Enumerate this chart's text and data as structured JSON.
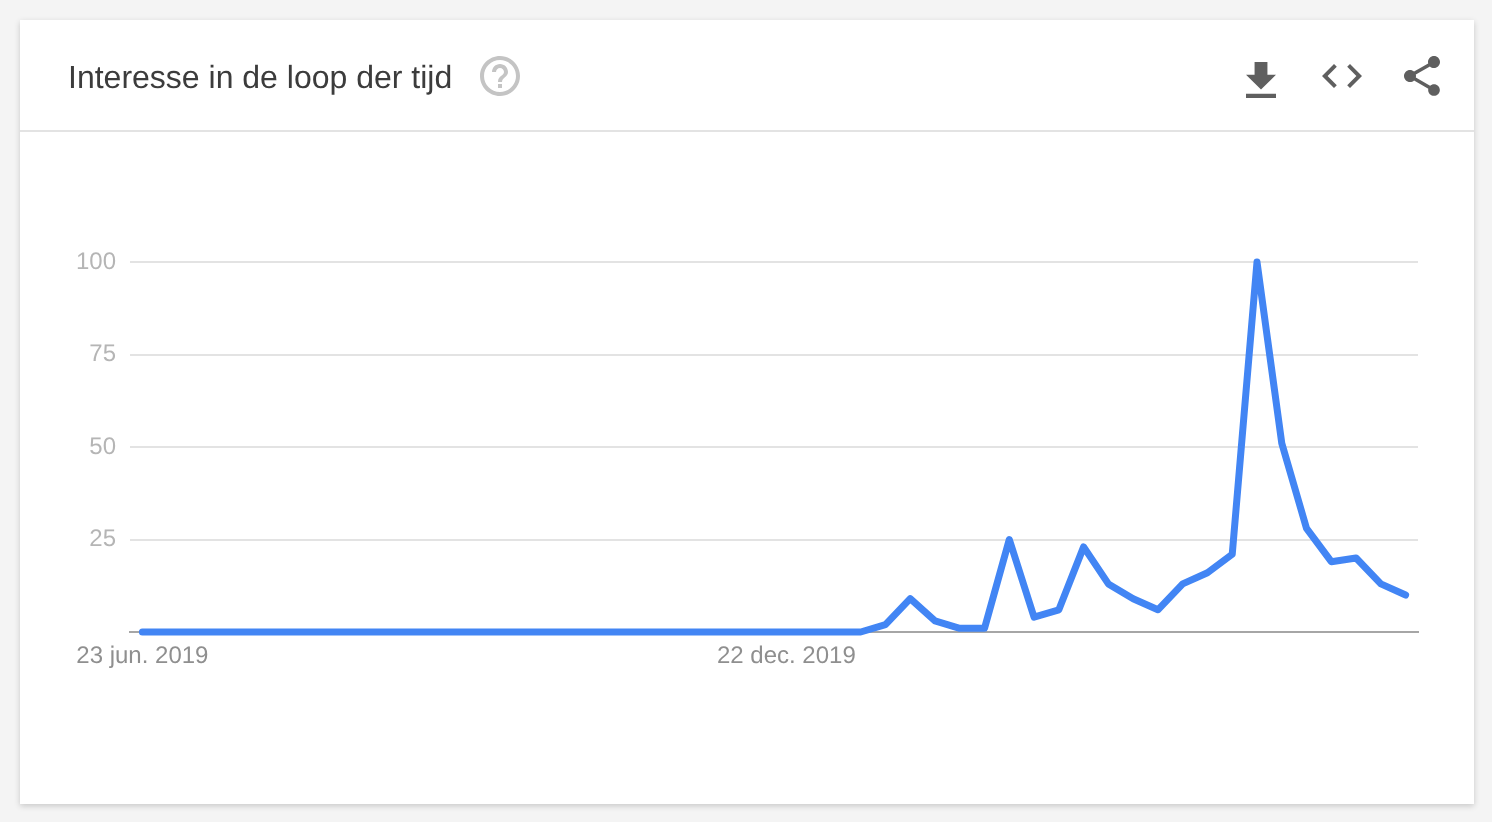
{
  "chart_data": {
    "type": "line",
    "title": "Interesse in de loop der tijd",
    "categories": [
      "23 jun. 2019",
      null,
      null,
      null,
      null,
      null,
      null,
      null,
      null,
      null,
      null,
      null,
      null,
      null,
      null,
      null,
      null,
      null,
      null,
      null,
      null,
      null,
      null,
      null,
      null,
      null,
      "22 dec. 2019",
      null,
      null,
      null,
      null,
      null,
      null,
      null,
      null,
      null,
      null,
      null,
      null,
      null,
      null,
      null,
      null,
      null,
      null,
      null,
      null,
      null,
      null,
      null,
      null,
      null
    ],
    "series": [
      {
        "color": "#4285f4",
        "values": [
          0,
          0,
          0,
          0,
          0,
          0,
          0,
          0,
          0,
          0,
          0,
          0,
          0,
          0,
          0,
          0,
          0,
          0,
          0,
          0,
          0,
          0,
          0,
          0,
          0,
          0,
          0,
          0,
          0,
          0,
          2,
          9,
          3,
          1,
          1,
          25,
          4,
          6,
          23,
          13,
          9,
          6,
          13,
          16,
          21,
          100,
          51,
          28,
          19,
          20,
          13,
          10
        ]
      }
    ],
    "ylim": [
      0,
      100
    ],
    "yticks": [
      25,
      50,
      75,
      100
    ],
    "grid": "y",
    "legend": false,
    "marker": "none",
    "line_style": "solid"
  }
}
